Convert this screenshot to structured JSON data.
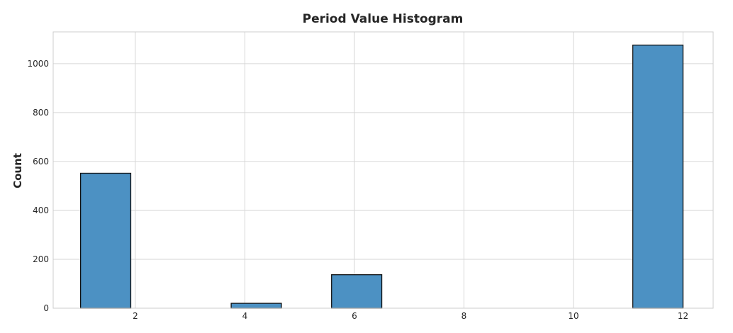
{
  "chart_data": {
    "type": "bar",
    "title": "Period Value Histogram",
    "xlabel": "",
    "ylabel": "Count",
    "xlim": [
      0.5,
      12.55
    ],
    "ylim": [
      0,
      1130
    ],
    "xticks": [
      2,
      4,
      6,
      8,
      10,
      12
    ],
    "yticks": [
      0,
      200,
      400,
      600,
      800,
      1000
    ],
    "grid": true,
    "bar_color": "#4c91c3",
    "bins": [
      {
        "x0": 1.0,
        "x1": 1.917,
        "count": 552
      },
      {
        "x0": 1.917,
        "x1": 2.833,
        "count": 0
      },
      {
        "x0": 2.833,
        "x1": 3.75,
        "count": 0
      },
      {
        "x0": 3.75,
        "x1": 4.667,
        "count": 20
      },
      {
        "x0": 4.667,
        "x1": 5.583,
        "count": 0
      },
      {
        "x0": 5.583,
        "x1": 6.5,
        "count": 137
      },
      {
        "x0": 6.5,
        "x1": 7.417,
        "count": 0
      },
      {
        "x0": 7.417,
        "x1": 8.333,
        "count": 0
      },
      {
        "x0": 8.333,
        "x1": 9.25,
        "count": 0
      },
      {
        "x0": 9.25,
        "x1": 10.167,
        "count": 0
      },
      {
        "x0": 10.167,
        "x1": 11.083,
        "count": 0
      },
      {
        "x0": 11.083,
        "x1": 12.0,
        "count": 1076
      }
    ]
  }
}
